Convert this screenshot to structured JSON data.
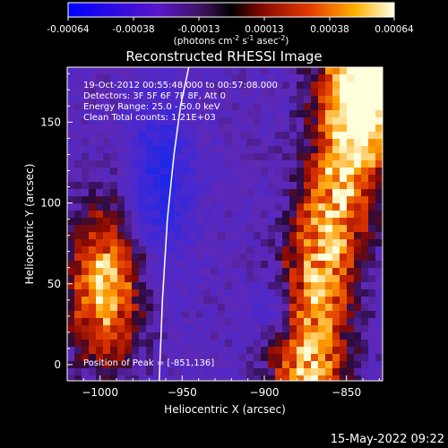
{
  "colorbar": {
    "ticks": [
      "-0.00064",
      "-0.00038",
      "-0.00013",
      "0.00013",
      "0.00038",
      "0.00064"
    ],
    "units_main": "(photons cm",
    "units_sup1": "-2",
    "units_mid1": " s",
    "units_sup2": "-1",
    "units_mid2": " asec",
    "units_sup3": "-2",
    "units_end": ")"
  },
  "annotations": {
    "time_range": "19-Oct-2012 00:55:48.000 to 00:57:08.000",
    "detectors": "Detectors: 3F 5F 6F 7F 8F, Att 0",
    "energy": "Energy Range: 25.0 - 50.0 keV",
    "clean": "Clean     Total counts: 1.21E+03",
    "peak": "Position of Peak = [-851,136]"
  },
  "footer": {
    "timestamp": "15-May-2022 09:22"
  },
  "colors": {
    "background": "#000000",
    "limb": "#ffffff"
  },
  "chart_data": {
    "type": "heatmap",
    "title": "Reconstructed RHESSI Image",
    "xlabel": "Heliocentric X (arcsec)",
    "ylabel": "Heliocentric Y (arcsec)",
    "xlim": [
      -1020,
      -828
    ],
    "ylim": [
      -10,
      184
    ],
    "x_ticks": [
      {
        "value": -1000,
        "label": "−1000"
      },
      {
        "value": -950,
        "label": "−950"
      },
      {
        "value": -900,
        "label": "−900"
      },
      {
        "value": -850,
        "label": "−850"
      }
    ],
    "y_ticks": [
      {
        "value": 0,
        "label": "0"
      },
      {
        "value": 50,
        "label": "50"
      },
      {
        "value": 100,
        "label": "100"
      },
      {
        "value": 150,
        "label": "150"
      }
    ],
    "color_range": [
      -0.00064,
      0.00064
    ],
    "limb_points": [
      [
        -964,
        -10
      ],
      [
        -962,
        40
      ],
      [
        -959,
        90
      ],
      [
        -955,
        130
      ],
      [
        -951,
        160
      ],
      [
        -946,
        184
      ]
    ],
    "peak": [
      -851,
      136
    ]
  }
}
